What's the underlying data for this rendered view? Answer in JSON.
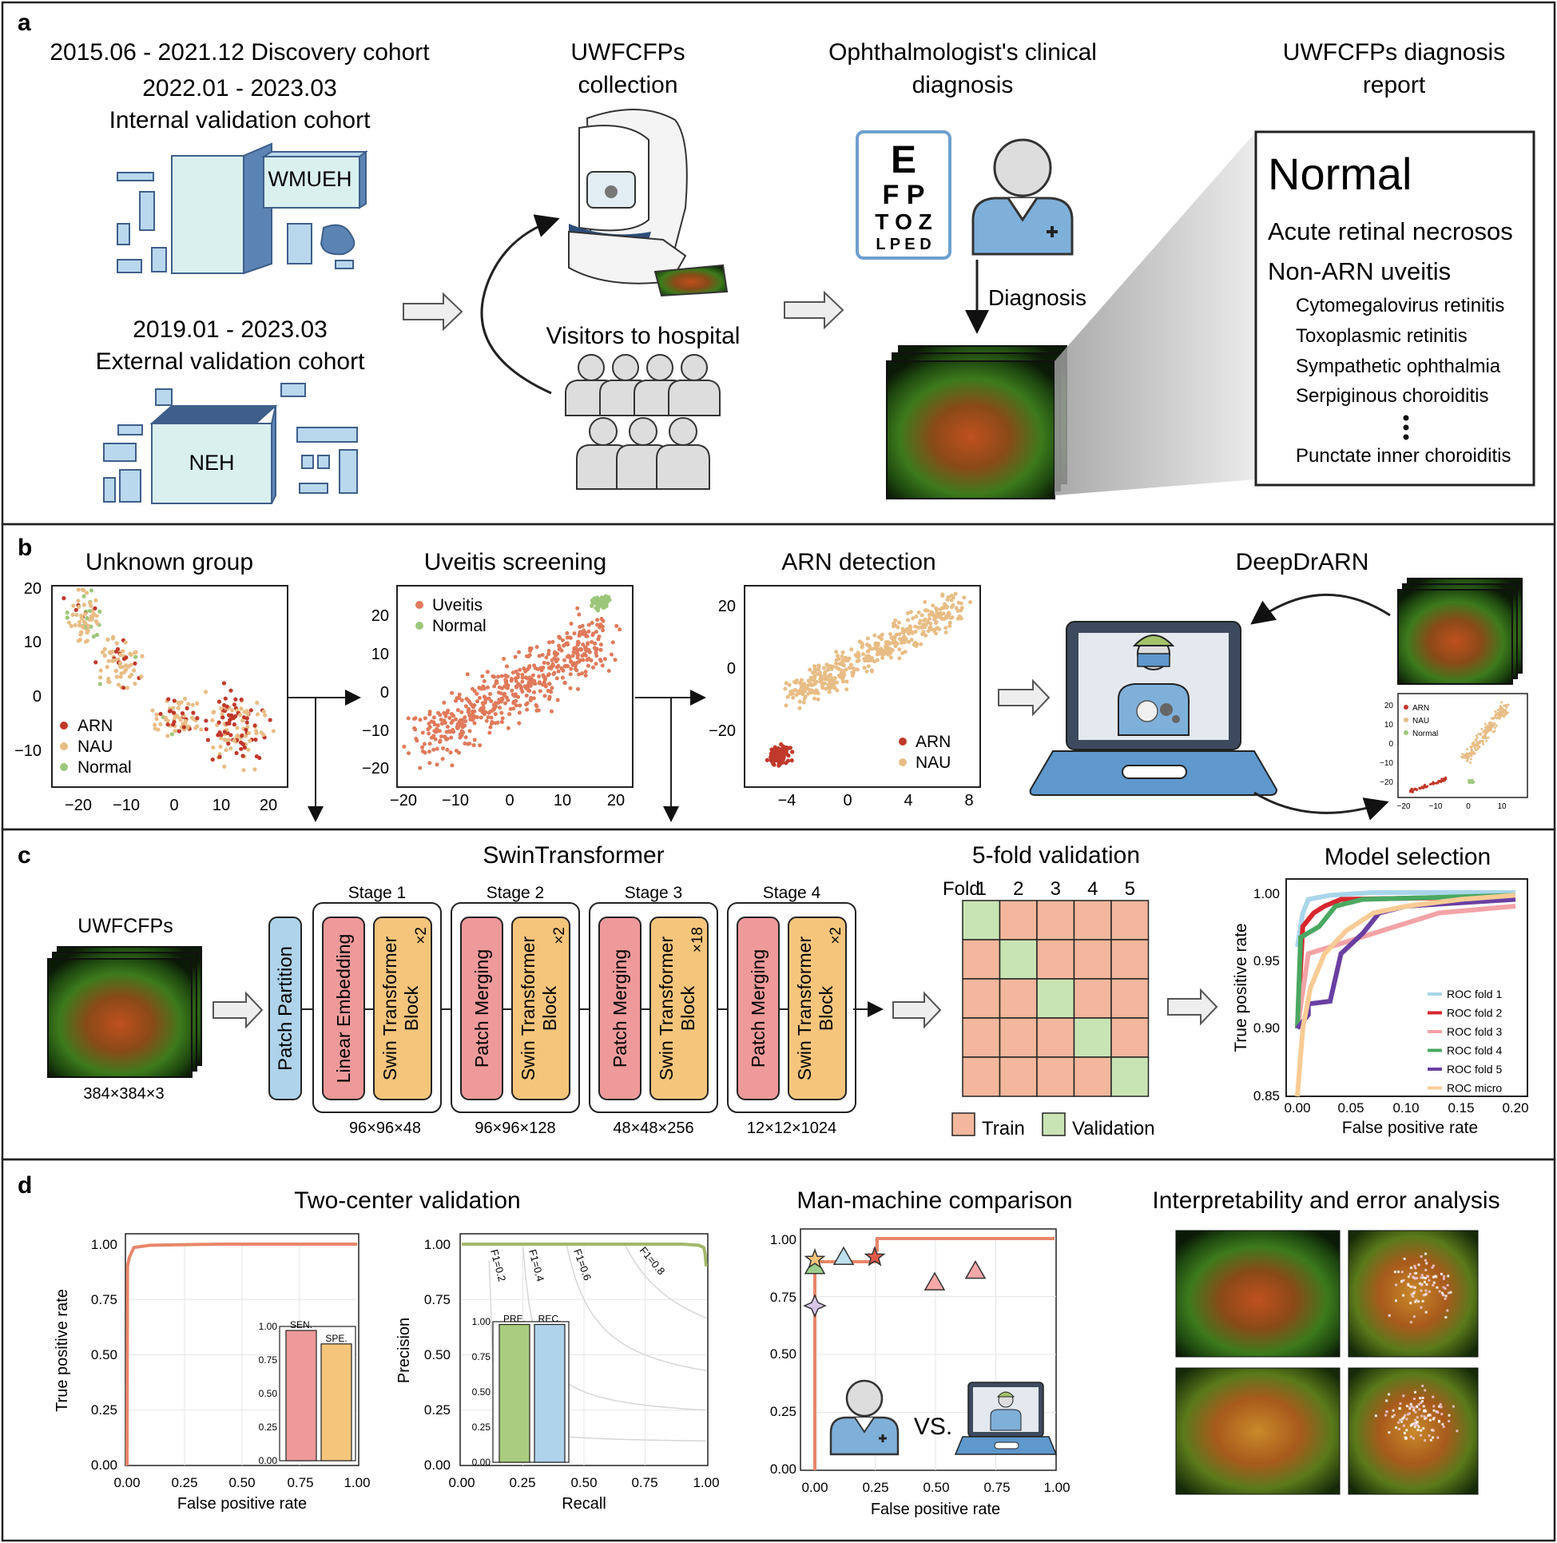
{
  "colors": {
    "panel_border": "#222222",
    "light_blue": "#b9d8ee",
    "mint": "#d9f0ee",
    "steel_blue": "#5b84b4",
    "salmon": "#f2b79c",
    "pink_block": "#ef9a9a",
    "orange_block": "#f6c57c",
    "blue_block": "#aed3ea",
    "green_cell": "#c9e4b4",
    "roc_orange": "#e8876a",
    "arn_red": "#c0392b",
    "nau_tan": "#e8bd85",
    "normal_green": "#9cc77a",
    "uveitis_orange": "#e07a5a"
  },
  "panels": {
    "a": {
      "letter": "a",
      "cohorts": {
        "discovery": "2015.06 - 2021.12 Discovery cohort",
        "internal_dates": "2022.01 - 2023.03",
        "internal_label": "Internal validation cohort",
        "hospital1": "WMUEH",
        "external_dates": "2019.01 - 2023.03",
        "external_label": "External validation cohort",
        "hospital2": "NEH"
      },
      "collection_title_1": "UWFCFPs",
      "collection_title_2": "collection",
      "visitors": "Visitors to hospital",
      "clinical_title_1": "Ophthalmologist's clinical",
      "clinical_title_2": "diagnosis",
      "eye_chart": [
        "E",
        "F P",
        "T O Z",
        "L P E D"
      ],
      "diagnosis": "Diagnosis",
      "report_title_1": "UWFCFPs diagnosis",
      "report_title_2": "report",
      "report": {
        "normal": "Normal",
        "arn": "Acute retinal necrosos",
        "non_arn": "Non-ARN uveitis",
        "items": [
          "Cytomegalovirus retinitis",
          "Toxoplasmic retinitis",
          "Sympathetic ophthalmia",
          "Serpiginous choroiditis"
        ],
        "last": "Punctate inner choroiditis"
      }
    },
    "b": {
      "letter": "b",
      "titles": {
        "unknown": "Unknown group",
        "screening": "Uveitis screening",
        "arn": "ARN detection",
        "deep": "DeepDrARN"
      },
      "plot1": {
        "yticks": [
          "20",
          "10",
          "0",
          "−10"
        ],
        "xticks": [
          "−20",
          "−10",
          "0",
          "10",
          "20"
        ],
        "legend": [
          "ARN",
          "NAU",
          "Normal"
        ]
      },
      "plot2": {
        "yticks": [
          "20",
          "10",
          "0",
          "−10",
          "−20"
        ],
        "xticks": [
          "−20",
          "−10",
          "0",
          "10",
          "20"
        ],
        "legend": [
          "Uveitis",
          "Normal"
        ]
      },
      "plot3": {
        "yticks": [
          "20",
          "0",
          "−20"
        ],
        "xticks": [
          "−4",
          "0",
          "4",
          "8"
        ],
        "legend": [
          "ARN",
          "NAU"
        ]
      },
      "mini": {
        "yticks": [
          "20",
          "10",
          "0",
          "−10",
          "−20"
        ],
        "xticks": [
          "−20",
          "−10",
          "0",
          "10"
        ],
        "legend": [
          "ARN",
          "NAU",
          "Normal"
        ]
      }
    },
    "c": {
      "letter": "c",
      "uwf_label": "UWFCFPs",
      "input_size": "384×384×3",
      "swin_title": "SwinTransformer",
      "patch_partition": "Patch Partition",
      "stages": [
        {
          "label": "Stage 1",
          "first": "Linear Embedding",
          "block": "Swin Transformer Block",
          "repeat": "×2",
          "size": "96×96×48"
        },
        {
          "label": "Stage 2",
          "first": "Patch Merging",
          "block": "Swin Transformer Block",
          "repeat": "×2",
          "size": "96×96×128"
        },
        {
          "label": "Stage 3",
          "first": "Patch Merging",
          "block": "Swin Transformer Block",
          "repeat": "×18",
          "size": "48×48×256"
        },
        {
          "label": "Stage 4",
          "first": "Patch Merging",
          "block": "Swin Transformer Block",
          "repeat": "×2",
          "size": "12×12×1024"
        }
      ],
      "fold_title": "5-fold validation",
      "fold_label": "Fold",
      "folds": [
        "1",
        "2",
        "3",
        "4",
        "5"
      ],
      "train": "Train",
      "validation": "Validation",
      "model_title": "Model selection",
      "roc_ylabel": "True positive rate",
      "roc_xlabel": "False positive rate",
      "roc_yticks": [
        "1.00",
        "0.95",
        "0.90",
        "0.85"
      ],
      "roc_xticks": [
        "0.00",
        "0.05",
        "0.10",
        "0.15",
        "0.20"
      ],
      "roc_legend": [
        {
          "name": "ROC fold 1",
          "color": "#a9d6ea"
        },
        {
          "name": "ROC fold 2",
          "color": "#d7262e"
        },
        {
          "name": "ROC fold 3",
          "color": "#f3a3a7"
        },
        {
          "name": "ROC fold 4",
          "color": "#4aa861"
        },
        {
          "name": "ROC fold 5",
          "color": "#6a3fa2"
        },
        {
          "name": "ROC micro",
          "color": "#f9cb95"
        }
      ]
    },
    "d": {
      "letter": "d",
      "two_center": "Two-center validation",
      "man_machine": "Man-machine comparison",
      "interp": "Interpretability and error analysis",
      "roc": {
        "ylabel": "True positive rate",
        "xlabel": "False positive rate",
        "ticks": [
          "0.00",
          "0.25",
          "0.50",
          "0.75",
          "1.00"
        ]
      },
      "roc_inset": {
        "ticks": [
          "0.00",
          "0.25",
          "0.50",
          "0.75",
          "1.00"
        ],
        "bars": [
          {
            "label": "SEN.",
            "value": 0.97
          },
          {
            "label": "SPE.",
            "value": 0.87
          }
        ]
      },
      "pr": {
        "ylabel": "Precision",
        "xlabel": "Recall",
        "ticks": [
          "0.00",
          "0.25",
          "0.50",
          "0.75",
          "1.00"
        ],
        "f1": [
          "F1=0.2",
          "F1=0.4",
          "F1=0.6",
          "F1=0.8"
        ]
      },
      "pr_inset": {
        "ticks": [
          "0.00",
          "0.25",
          "0.50",
          "0.75",
          "1.00"
        ],
        "bars": [
          {
            "label": "PRE.",
            "value": 0.98
          },
          {
            "label": "REC.",
            "value": 0.98
          }
        ]
      },
      "mm": {
        "xlabel": "False positive rate",
        "ticks": [
          "0.00",
          "0.25",
          "0.50",
          "0.75",
          "1.00"
        ],
        "vs": "VS."
      }
    }
  }
}
